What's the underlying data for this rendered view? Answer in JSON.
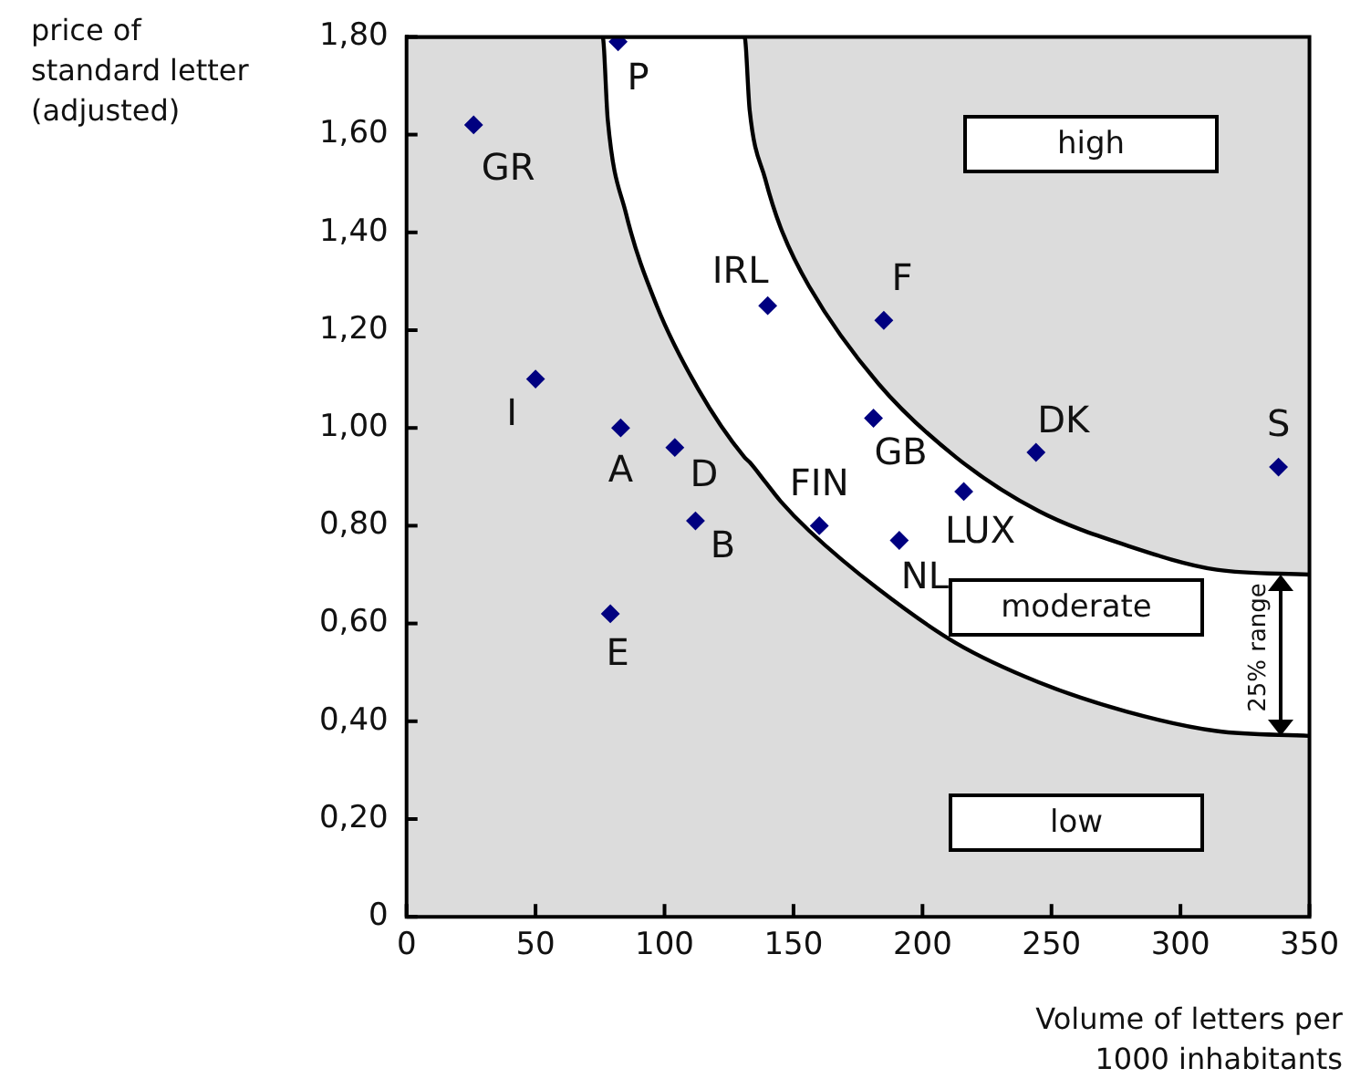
{
  "chart_data": {
    "type": "scatter",
    "xlabel": "Volume of letters per 1000 inhabitants",
    "ylabel": "price of standard letter (adjusted)",
    "xlim": [
      0,
      350
    ],
    "xticks": [
      0,
      50,
      100,
      150,
      200,
      250,
      300,
      350
    ],
    "ylim": [
      0,
      1.8
    ],
    "yticks": [
      {
        "value": 0,
        "label": "0"
      },
      {
        "value": 0.2,
        "label": "0,20"
      },
      {
        "value": 0.4,
        "label": "0,40"
      },
      {
        "value": 0.6,
        "label": "0,60"
      },
      {
        "value": 0.8,
        "label": "0,80"
      },
      {
        "value": 1,
        "label": "1,00"
      },
      {
        "value": 1.2,
        "label": "1,20"
      },
      {
        "value": 1.4,
        "label": "1,40"
      },
      {
        "value": 1.6,
        "label": "1,60"
      },
      {
        "value": 1.8,
        "label": "1,80"
      }
    ],
    "legend": false,
    "series": [
      {
        "type": "area",
        "color": "#ffffff",
        "x": [
          76,
          131,
          133,
          139,
          145,
          156,
          183,
          213,
          245,
          279,
          314,
          350
        ],
        "values": [
          1.8,
          1.8,
          1.65,
          1.51,
          1.41,
          1.29,
          1.09,
          0.94,
          0.83,
          0.76,
          0.71,
          0.7
        ]
      },
      {
        "type": "area",
        "color": "#dcdcdc",
        "x": [
          0,
          76,
          78,
          85,
          97,
          113,
          131,
          133,
          139,
          145,
          156,
          183,
          213,
          245,
          279,
          314,
          350
        ],
        "values": [
          1.8,
          1.8,
          1.63,
          1.44,
          1.25,
          1.08,
          0.94,
          0.93,
          0.89,
          0.85,
          0.79,
          0.67,
          0.56,
          0.48,
          0.42,
          0.38,
          0.37
        ]
      },
      {
        "type": "scatter",
        "color": "#000080",
        "marker": "diamond",
        "x": [
          82,
          26,
          140,
          185,
          50,
          83,
          104,
          181,
          244,
          338,
          216,
          112,
          160,
          191,
          79
        ],
        "values": [
          1.79,
          1.62,
          1.25,
          1.22,
          1.1,
          1,
          0.96,
          1.02,
          0.95,
          0.92,
          0.87,
          0.81,
          0.8,
          0.77,
          0.62
        ]
      }
    ],
    "annotations": [
      {
        "text": "P",
        "x": 82,
        "y": 1.79
      },
      {
        "text": "GR",
        "x": 26,
        "y": 1.62
      },
      {
        "text": "IRL",
        "x": 140,
        "y": 1.25
      },
      {
        "text": "F",
        "x": 185,
        "y": 1.22
      },
      {
        "text": "I",
        "x": 50,
        "y": 1.1
      },
      {
        "text": "A",
        "x": 83,
        "y": 1
      },
      {
        "text": "D",
        "x": 104,
        "y": 0.96
      },
      {
        "text": "GB",
        "x": 181,
        "y": 1.02
      },
      {
        "text": "DK",
        "x": 244,
        "y": 0.95
      },
      {
        "text": "S",
        "x": 338,
        "y": 0.92
      },
      {
        "text": "LUX",
        "x": 216,
        "y": 0.87
      },
      {
        "text": "B",
        "x": 112,
        "y": 0.81
      },
      {
        "text": "FIN",
        "x": 160,
        "y": 0.8
      },
      {
        "text": "NL",
        "x": 191,
        "y": 0.77
      },
      {
        "text": "E",
        "x": 79,
        "y": 0.62
      },
      "high",
      "moderate",
      "low",
      "25% range"
    ]
  }
}
